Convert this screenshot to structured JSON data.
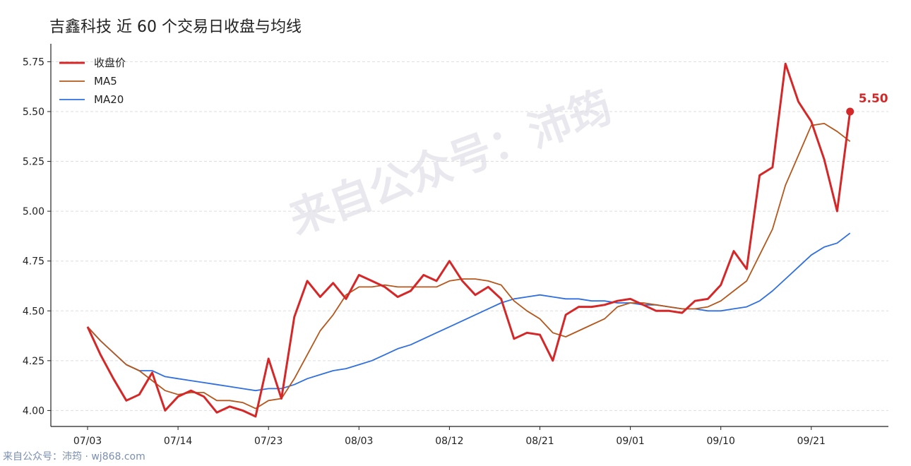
{
  "chart_data": {
    "type": "line",
    "title": "吉鑫科技 近 60 个交易日收盘与均线",
    "xlabel": "",
    "ylabel": "",
    "ylim": [
      3.92,
      5.84
    ],
    "yticks": [
      "4.00",
      "4.25",
      "4.50",
      "4.75",
      "5.00",
      "5.25",
      "5.50",
      "5.75"
    ],
    "xticks": [
      {
        "label": "07/03",
        "index": 0
      },
      {
        "label": "07/14",
        "index": 7
      },
      {
        "label": "07/23",
        "index": 14
      },
      {
        "label": "08/03",
        "index": 21
      },
      {
        "label": "08/12",
        "index": 28
      },
      {
        "label": "08/21",
        "index": 35
      },
      {
        "label": "09/01",
        "index": 42
      },
      {
        "label": "09/10",
        "index": 49
      },
      {
        "label": "09/21",
        "index": 56
      }
    ],
    "grid": "horizontal dashed",
    "legend_position": "top-left",
    "series": [
      {
        "name": "收盘价",
        "color": "#d62728",
        "values": [
          4.42,
          4.28,
          4.16,
          4.05,
          4.08,
          4.19,
          4.0,
          4.07,
          4.1,
          4.07,
          3.99,
          4.02,
          4.0,
          3.97,
          4.26,
          4.06,
          4.47,
          4.65,
          4.57,
          4.64,
          4.56,
          4.68,
          4.65,
          4.62,
          4.57,
          4.6,
          4.68,
          4.65,
          4.75,
          4.65,
          4.58,
          4.62,
          4.56,
          4.36,
          4.39,
          4.38,
          4.25,
          4.48,
          4.52,
          4.52,
          4.53,
          4.55,
          4.56,
          4.53,
          4.5,
          4.5,
          4.49,
          4.55,
          4.56,
          4.63,
          4.8,
          4.71,
          5.18,
          5.22,
          5.74,
          5.55,
          5.45,
          5.26,
          5.0,
          5.5
        ]
      },
      {
        "name": "MA5",
        "color": "#b5571c",
        "values": [
          4.42,
          4.35,
          4.29,
          4.23,
          4.2,
          4.15,
          4.1,
          4.08,
          4.09,
          4.09,
          4.05,
          4.05,
          4.04,
          4.01,
          4.05,
          4.06,
          4.16,
          4.28,
          4.4,
          4.48,
          4.58,
          4.62,
          4.62,
          4.63,
          4.62,
          4.62,
          4.62,
          4.62,
          4.65,
          4.66,
          4.66,
          4.65,
          4.63,
          4.55,
          4.5,
          4.46,
          4.39,
          4.37,
          4.4,
          4.43,
          4.46,
          4.52,
          4.54,
          4.54,
          4.53,
          4.52,
          4.51,
          4.51,
          4.52,
          4.55,
          4.6,
          4.65,
          4.78,
          4.91,
          5.13,
          5.28,
          5.43,
          5.44,
          5.4,
          5.35
        ]
      },
      {
        "name": "MA20",
        "color": "#2f6fe0",
        "values": [
          4.42,
          4.35,
          4.29,
          4.23,
          4.2,
          4.2,
          4.17,
          4.16,
          4.15,
          4.14,
          4.13,
          4.12,
          4.11,
          4.1,
          4.11,
          4.11,
          4.13,
          4.16,
          4.18,
          4.2,
          4.21,
          4.23,
          4.25,
          4.28,
          4.31,
          4.33,
          4.36,
          4.39,
          4.42,
          4.45,
          4.48,
          4.51,
          4.54,
          4.56,
          4.57,
          4.58,
          4.57,
          4.56,
          4.56,
          4.55,
          4.55,
          4.54,
          4.54,
          4.53,
          4.53,
          4.52,
          4.51,
          4.51,
          4.5,
          4.5,
          4.51,
          4.52,
          4.55,
          4.6,
          4.66,
          4.72,
          4.78,
          4.82,
          4.84,
          4.89
        ]
      }
    ],
    "end_label": "5.50"
  },
  "watermark": "来自公众号：沛筠",
  "footer": "来自公众号：沛筠 · wj868.com"
}
